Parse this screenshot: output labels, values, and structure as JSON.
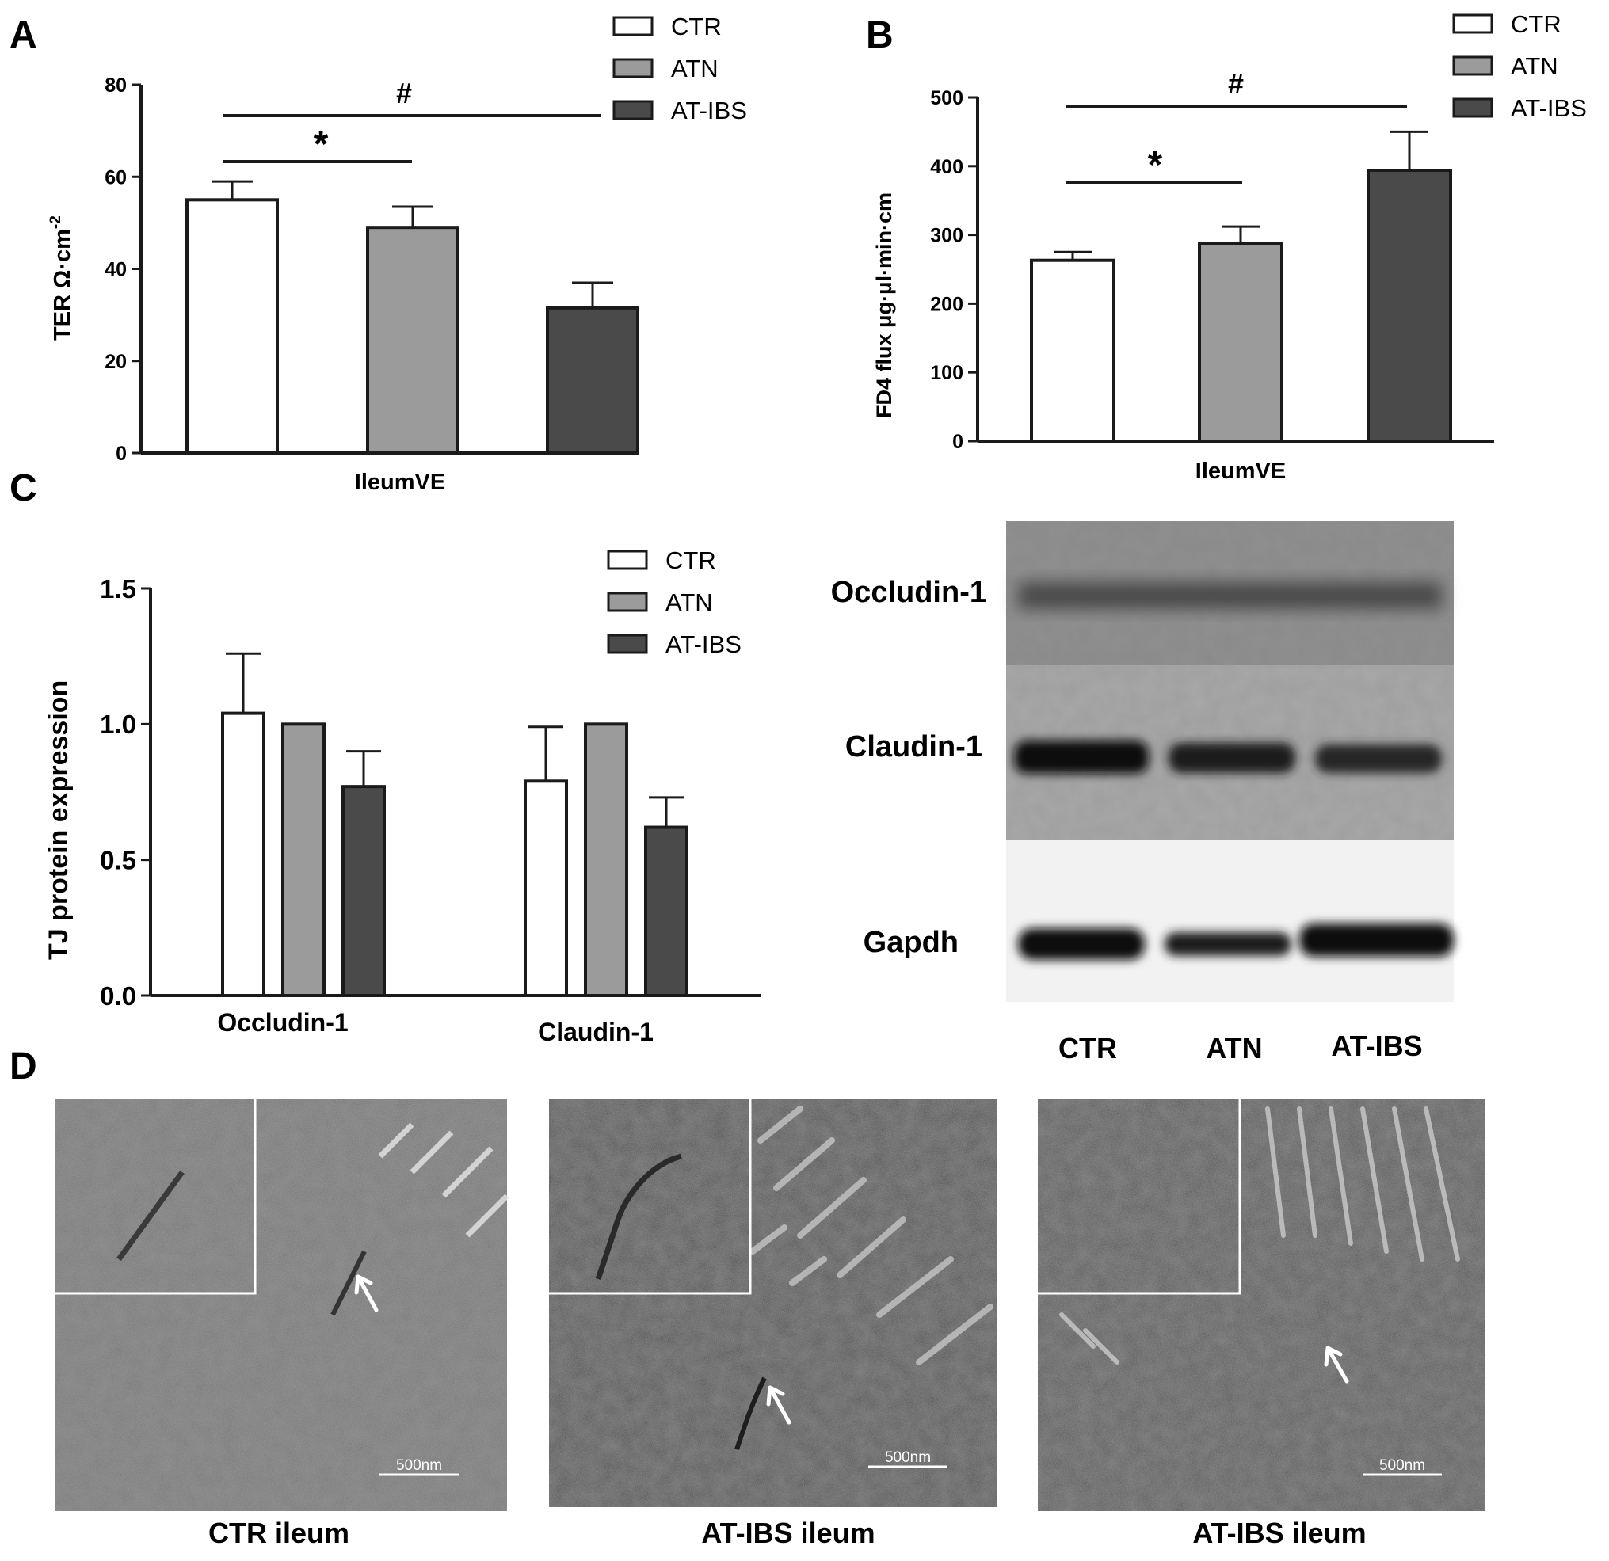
{
  "panels": {
    "a": "A",
    "b": "B",
    "c": "C",
    "d": "D"
  },
  "legend": [
    "CTR",
    "ATN",
    "AT-IBS"
  ],
  "colors": {
    "CTR": "#ffffff",
    "ATN": "#9b9b9b",
    "AT-IBS": "#4a4a4a",
    "axis": "#1a1a1a"
  },
  "chart_data": [
    {
      "panel": "A",
      "type": "bar",
      "categories": [
        "CTR",
        "ATN",
        "AT-IBS"
      ],
      "values": [
        55,
        49,
        31.5
      ],
      "errors": [
        4,
        4.5,
        5.5
      ],
      "xlabel": "IleumVE",
      "ylabel": "TER Ω·cm",
      "ylabel_sup": "-2",
      "ylim": [
        0,
        80
      ],
      "yticks": [
        "0",
        "20",
        "40",
        "60",
        "80"
      ],
      "sig": [
        {
          "from": "CTR",
          "to": "ATN",
          "label": "*"
        },
        {
          "from": "CTR",
          "to": "AT-IBS",
          "label": "#"
        }
      ],
      "legend_placement": "top-right",
      "grid": false
    },
    {
      "panel": "B",
      "type": "bar",
      "categories": [
        "CTR",
        "ATN",
        "AT-IBS"
      ],
      "values": [
        263,
        288,
        394
      ],
      "errors": [
        12,
        24,
        56
      ],
      "xlabel": "IleumVE",
      "ylabel": "FD4 flux μg·μl·min·cm",
      "ylim": [
        0,
        500
      ],
      "yticks": [
        "0",
        "100",
        "200",
        "300",
        "400",
        "500"
      ],
      "sig": [
        {
          "from": "CTR",
          "to": "ATN",
          "label": "*"
        },
        {
          "from": "CTR",
          "to": "AT-IBS",
          "label": "#"
        }
      ],
      "legend_placement": "top-right",
      "grid": false
    },
    {
      "panel": "C",
      "type": "bar",
      "categories": [
        "Occludin-1",
        "Claudin-1"
      ],
      "series": [
        {
          "name": "CTR",
          "values": [
            1.04,
            0.79
          ],
          "errors": [
            0.22,
            0.2
          ]
        },
        {
          "name": "ATN",
          "values": [
            1.0,
            1.0
          ],
          "errors": [
            0,
            0
          ]
        },
        {
          "name": "AT-IBS",
          "values": [
            0.77,
            0.62
          ],
          "errors": [
            0.13,
            0.11
          ]
        }
      ],
      "ylabel": "TJ protein expression",
      "ylim": [
        0,
        1.5
      ],
      "yticks": [
        "0.0",
        "0.5",
        "1.0",
        "1.5"
      ],
      "legend_placement": "top-right",
      "grid": false
    }
  ],
  "blot": {
    "rows": [
      "Occludin-1",
      "Claudin-1",
      "Gapdh"
    ],
    "lanes": [
      "CTR",
      "ATN",
      "AT-IBS"
    ]
  },
  "tem": {
    "scale_label": "500nm",
    "captions": [
      "CTR ileum",
      "AT-IBS ileum",
      "AT-IBS ileum"
    ]
  }
}
